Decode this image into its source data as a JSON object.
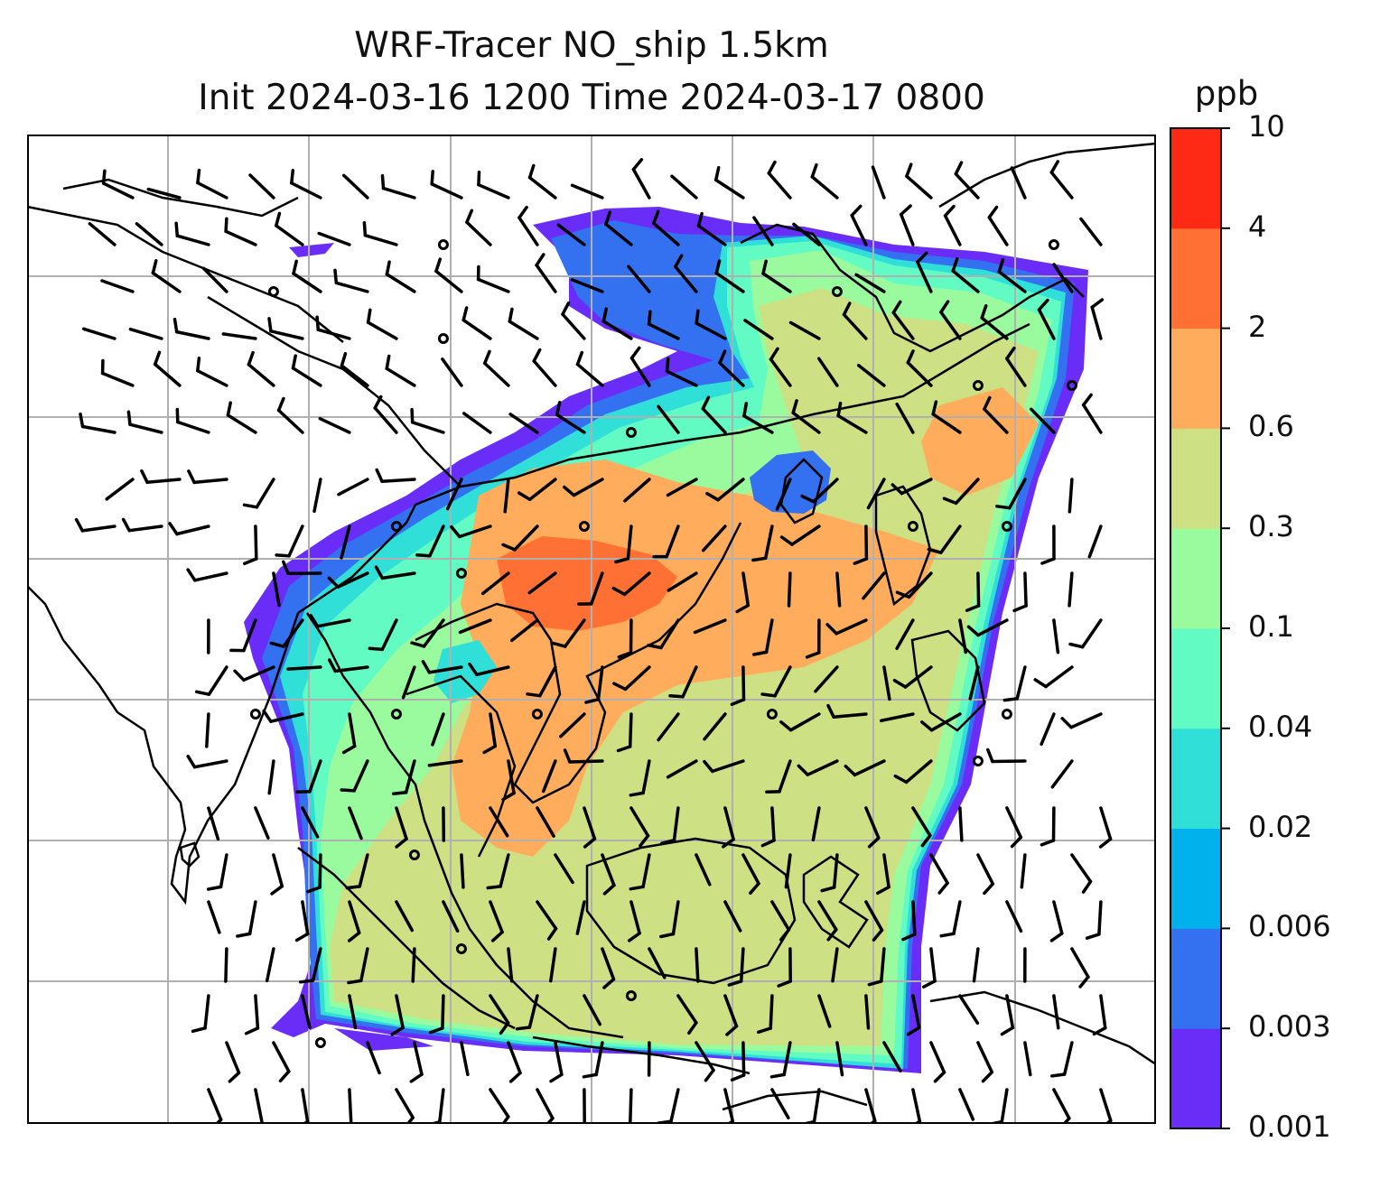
{
  "title": {
    "line1": "WRF-Tracer NO_ship 1.5km",
    "line2": "Init 2024-03-16 1200 Time 2024-03-17 0800"
  },
  "colorbar": {
    "unit": "ppb",
    "ticks": [
      "10",
      "4",
      "2",
      "0.6",
      "0.3",
      "0.1",
      "0.04",
      "0.02",
      "0.006",
      "0.003",
      "0.001"
    ],
    "colors": [
      "#6a2cf7",
      "#3371f0",
      "#00b1ec",
      "#2fdfd8",
      "#62fbc3",
      "#99fb9d",
      "#cde083",
      "#ffac5c",
      "#ff7035",
      "#ff2a15"
    ]
  },
  "map": {
    "field": "NO_ship",
    "level": "1.5km",
    "overlays": [
      "coastlines",
      "country-borders",
      "gridlines",
      "wind-barbs"
    ],
    "grid_color": "#b0b0b0",
    "land_line_color": "#000000"
  }
}
